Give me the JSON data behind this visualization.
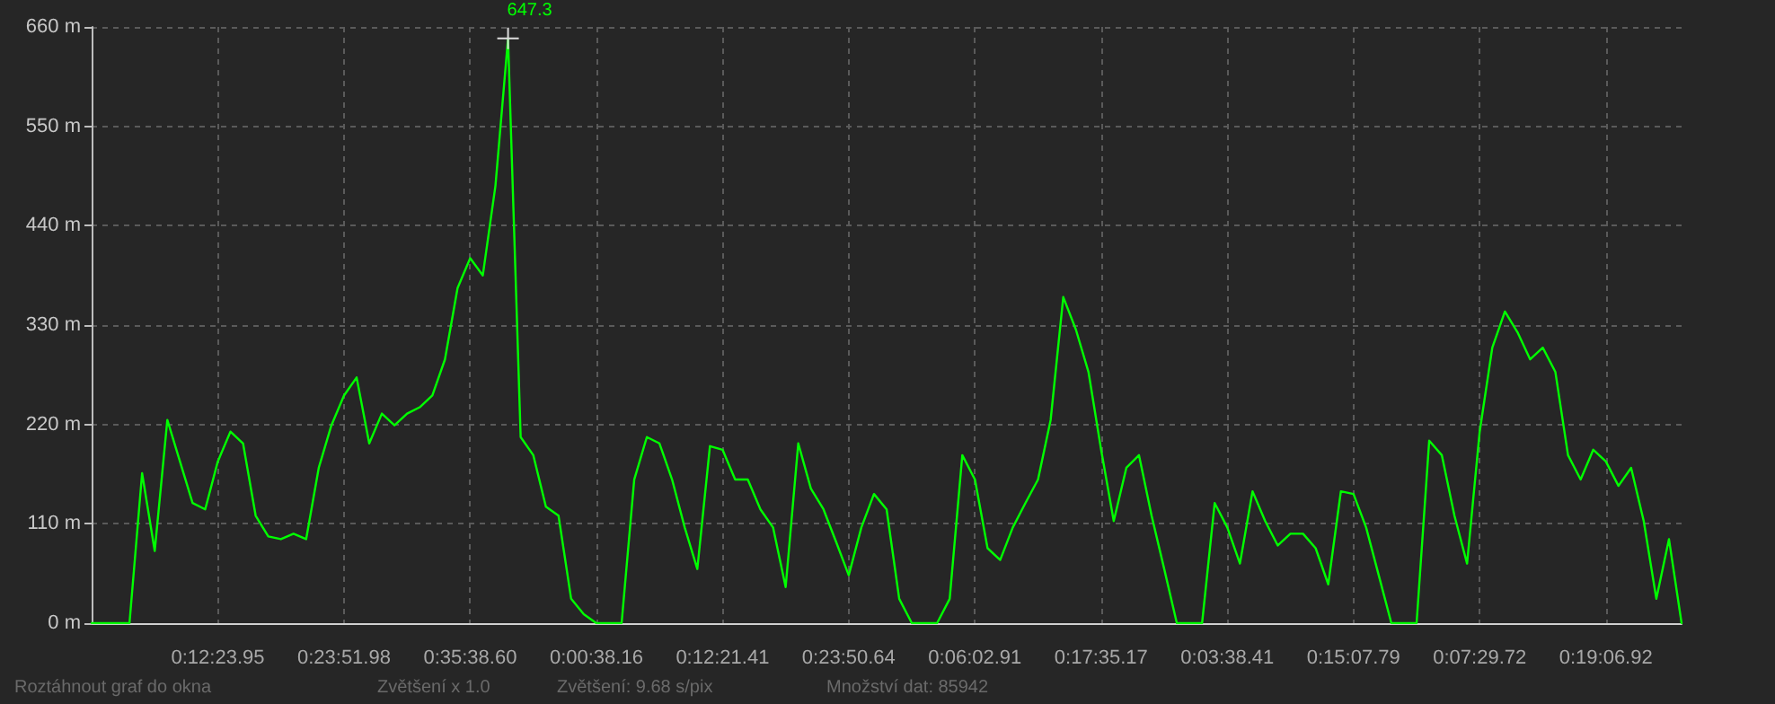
{
  "chart_data": {
    "type": "line",
    "categories": [
      null,
      null,
      null,
      null,
      null,
      null,
      null,
      null,
      null,
      null,
      "0:12:23.95",
      null,
      null,
      null,
      null,
      null,
      null,
      null,
      null,
      null,
      "0:23:51.98",
      null,
      null,
      null,
      null,
      null,
      null,
      null,
      null,
      null,
      "0:35:38.60",
      null,
      null,
      null,
      null,
      null,
      null,
      null,
      null,
      null,
      "0:00:38.16",
      null,
      null,
      null,
      null,
      null,
      null,
      null,
      null,
      null,
      "0:12:21.41",
      null,
      null,
      null,
      null,
      null,
      null,
      null,
      null,
      null,
      "0:23:50.64",
      null,
      null,
      null,
      null,
      null,
      null,
      null,
      null,
      null,
      "0:06:02.91",
      null,
      null,
      null,
      null,
      null,
      null,
      null,
      null,
      null,
      "0:17:35.17",
      null,
      null,
      null,
      null,
      null,
      null,
      null,
      null,
      null,
      "0:03:38.41",
      null,
      null,
      null,
      null,
      null,
      null,
      null,
      null,
      null,
      "0:15:07.79",
      null,
      null,
      null,
      null,
      null,
      null,
      null,
      null,
      null,
      "0:07:29.72",
      null,
      null,
      null,
      null,
      null,
      null,
      null,
      null,
      null,
      "0:19:06.92",
      null,
      null,
      null,
      null,
      null,
      null
    ],
    "series": [
      {
        "color": "#00ff00",
        "value_labels": [
          null,
          null,
          null,
          null,
          null,
          null,
          null,
          null,
          null,
          null,
          null,
          null,
          null,
          null,
          null,
          null,
          null,
          null,
          null,
          null,
          null,
          null,
          null,
          null,
          null,
          null,
          null,
          null,
          null,
          null,
          null,
          null,
          null,
          "647.3",
          null,
          null,
          null,
          null,
          null,
          null,
          null,
          null,
          null,
          null,
          null,
          null,
          null,
          null,
          null,
          null,
          null,
          null,
          null,
          null,
          null,
          null,
          null,
          null,
          null,
          null,
          null,
          null,
          null,
          null,
          null,
          null,
          null,
          null,
          null,
          null,
          null,
          null,
          null,
          null,
          null,
          null,
          null,
          null,
          null,
          null,
          null,
          null,
          null,
          null,
          null,
          null,
          null,
          null,
          null,
          null,
          null,
          null,
          null,
          null,
          null,
          null,
          null,
          null,
          null,
          null,
          null,
          null,
          null,
          null,
          null,
          null,
          null,
          null,
          null,
          null,
          null,
          null,
          null,
          null,
          null,
          null,
          null,
          null,
          null,
          null,
          null,
          null,
          null,
          null,
          null,
          null,
          null
        ],
        "values": [
          0,
          0,
          0,
          0,
          166,
          80,
          225,
          179,
          133,
          126,
          179,
          212,
          199,
          119,
          96,
          93,
          99,
          93,
          172,
          219,
          252,
          272,
          199,
          232,
          219,
          232,
          239,
          252,
          292,
          371,
          404,
          385,
          484,
          647.3,
          206,
          186,
          129,
          119,
          27,
          10,
          0,
          0,
          0,
          159,
          206,
          199,
          159,
          106,
          60,
          196,
          192,
          159,
          159,
          126,
          106,
          40,
          199,
          149,
          126,
          90,
          53,
          106,
          143,
          126,
          27,
          0,
          0,
          0,
          27,
          186,
          159,
          83,
          70,
          106,
          133,
          159,
          225,
          361,
          325,
          278,
          192,
          113,
          172,
          186,
          119,
          60,
          0,
          0,
          0,
          133,
          106,
          66,
          146,
          113,
          86,
          99,
          99,
          83,
          43,
          146,
          143,
          106,
          53,
          0,
          0,
          0,
          202,
          186,
          119,
          66,
          212,
          305,
          345,
          322,
          292,
          305,
          278,
          186,
          159,
          192,
          179,
          152,
          172,
          113,
          27,
          93,
          0
        ]
      }
    ],
    "ylim": [
      0,
      660
    ],
    "yticks": [
      {
        "value": 0,
        "label": "0 m"
      },
      {
        "value": 110,
        "label": "110 m"
      },
      {
        "value": 220,
        "label": "220 m"
      },
      {
        "value": 330,
        "label": "330 m"
      },
      {
        "value": 440,
        "label": "440 m"
      },
      {
        "value": 550,
        "label": "550 m"
      },
      {
        "value": 660,
        "label": "660 m"
      }
    ],
    "grid": true,
    "marker": "none",
    "line_style": "solid",
    "annotations": [
      "Roztáhnout graf do okna",
      "Zvětšení x 1.0",
      "Zvětšení: 9.68 s/pix",
      "Množství dat: 85942"
    ]
  }
}
